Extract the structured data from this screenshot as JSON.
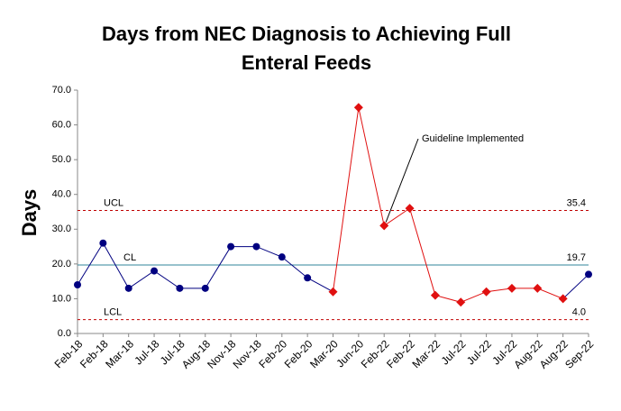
{
  "chart_data": {
    "type": "line",
    "title": [
      "Days from NEC Diagnosis to Achieving Full",
      "Enteral Feeds"
    ],
    "y_label": "Days",
    "categories": [
      "Feb-18",
      "Feb-18",
      "Mar-18",
      "Jul-18",
      "Jul-18",
      "Aug-18",
      "Nov-18",
      "Nov-18",
      "Feb-20",
      "Feb-20",
      "Mar-20",
      "Jun-20",
      "Feb-22",
      "Feb-22",
      "Mar-22",
      "Jul-22",
      "Jul-22",
      "Jul-22",
      "Aug-22",
      "Aug-22",
      "Sep-22"
    ],
    "series": [
      {
        "color": "#000080",
        "marker": "circle",
        "values": [
          14,
          26,
          13,
          18,
          13,
          13,
          25,
          25,
          22,
          16,
          null,
          null,
          null,
          null,
          null,
          null,
          null,
          null,
          null,
          null,
          17
        ]
      },
      {
        "color": "#e01010",
        "marker": "diamond",
        "values": [
          null,
          null,
          null,
          null,
          null,
          null,
          null,
          null,
          null,
          null,
          12,
          65,
          31,
          36,
          11,
          9,
          12,
          13,
          13,
          10,
          null
        ]
      }
    ],
    "limits": [
      {
        "name": "UCL",
        "value": 35.4,
        "color": "#c00000",
        "dash": true
      },
      {
        "name": "CL",
        "value": 19.7,
        "color": "#31849b",
        "dash": false
      },
      {
        "name": "LCL",
        "value": 4.0,
        "label": "4.0",
        "color": "#c00000",
        "dash": true
      }
    ],
    "annotation": "Guideline Implemented",
    "ylim": [
      0,
      70
    ],
    "yticks": [
      {
        "value": 0,
        "label": "0.0"
      },
      {
        "value": 10,
        "label": "10.0"
      },
      {
        "value": 20,
        "label": "20.0"
      },
      {
        "value": 30,
        "label": "30.0"
      },
      {
        "value": 40,
        "label": "40.0"
      },
      {
        "value": 50,
        "label": "50.0"
      },
      {
        "value": 60,
        "label": "60.0"
      },
      {
        "value": 70,
        "label": "70.0"
      }
    ]
  }
}
